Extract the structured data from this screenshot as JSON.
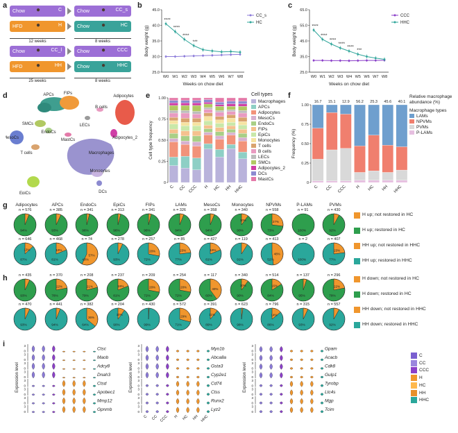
{
  "panel_labels": {
    "a": "a",
    "b": "b",
    "c": "c",
    "d": "d",
    "e": "e",
    "f": "f",
    "g": "g",
    "h": "h",
    "i": "i"
  },
  "panel_a": {
    "rows": [
      {
        "left": {
          "text": "Chow",
          "badge": "C",
          "color": "#9c6fd6"
        },
        "right": {
          "text": "Chow",
          "badge": "CC_s",
          "color": "#9c6fd6"
        }
      },
      {
        "left": {
          "text": "HFD",
          "badge": "H",
          "color": "#f0962d"
        },
        "right": {
          "text": "Chow",
          "badge": "HC",
          "color": "#3aa39a"
        }
      },
      {
        "left": {
          "text": "Chow",
          "badge": "CC_l",
          "color": "#9c6fd6"
        },
        "right": {
          "text": "Chow",
          "badge": "CCC",
          "color": "#9c6fd6"
        }
      },
      {
        "left": {
          "text": "HFD",
          "badge": "HH",
          "color": "#f0962d"
        },
        "right": {
          "text": "Chow",
          "badge": "HHC",
          "color": "#3aa39a"
        }
      }
    ],
    "dur_top_left": "12 weeks",
    "dur_top_right": "8 weeks",
    "dur_bot_left": "25 weeks",
    "dur_bot_right": "8 weeks"
  },
  "chart_data": [
    {
      "id": "b",
      "type": "line",
      "xlabel": "Weeks on chow diet",
      "ylabel": "Body weight (g)",
      "categories": [
        "W0",
        "W1",
        "W2",
        "W3",
        "W4",
        "W5",
        "W6",
        "W7",
        "W8"
      ],
      "yticks": [
        "25.0",
        "30.0",
        "35.0",
        "40.0",
        "45.0"
      ],
      "ylim": [
        25,
        45
      ],
      "series": [
        {
          "name": "CC_s",
          "color": "#8b7ad9",
          "values": [
            30.0,
            30.0,
            30.1,
            30.2,
            30.3,
            30.4,
            30.5,
            30.6,
            30.7
          ]
        },
        {
          "name": "HC",
          "color": "#2fa59a",
          "values": [
            40.5,
            38.0,
            35.5,
            33.5,
            32.2,
            31.8,
            31.5,
            31.6,
            31.4
          ]
        }
      ],
      "annotations": [
        "****",
        "****",
        "****",
        "***"
      ]
    },
    {
      "id": "c",
      "type": "line",
      "xlabel": "Weeks on chow diet",
      "ylabel": "Body weight (g)",
      "categories": [
        "W0",
        "W1",
        "W2",
        "W3",
        "W4",
        "W5",
        "W6",
        "W7",
        "W8"
      ],
      "yticks": [
        "25.0",
        "35.0",
        "45.0",
        "55.0",
        "65.0"
      ],
      "ylim": [
        25,
        65
      ],
      "series": [
        {
          "name": "CCC",
          "color": "#8b3fc9",
          "values": [
            32.5,
            32.5,
            32.4,
            32.4,
            32.3,
            32.4,
            32.5,
            32.5,
            32.6
          ]
        },
        {
          "name": "HHC",
          "color": "#2fa59a",
          "values": [
            52.0,
            46.0,
            43.0,
            40.5,
            38.5,
            36.5,
            35.0,
            34.0,
            33.2
          ]
        }
      ],
      "annotations": [
        "****",
        "****",
        "****",
        "****",
        "****",
        "***"
      ]
    },
    {
      "id": "e",
      "type": "bar",
      "ylabel": "Cell type frequency",
      "xlabel": "",
      "categories": [
        "C",
        "CC",
        "CCC",
        "H",
        "HC",
        "HH",
        "HHC"
      ],
      "yticks": [
        "0",
        "0.25",
        "0.50",
        "0.75",
        "1.00"
      ],
      "ylim": [
        0,
        1
      ],
      "legend_title": "Cell types",
      "series": [
        {
          "name": "Macrophages",
          "color": "#b9b3db",
          "values": [
            0.2,
            0.17,
            0.15,
            0.38,
            0.3,
            0.4,
            0.28
          ]
        },
        {
          "name": "APCs",
          "color": "#8ecfc5",
          "values": [
            0.1,
            0.14,
            0.14,
            0.06,
            0.09,
            0.05,
            0.08
          ]
        },
        {
          "name": "Adipocytes",
          "color": "#f2937a",
          "values": [
            0.18,
            0.14,
            0.14,
            0.1,
            0.12,
            0.11,
            0.13
          ]
        },
        {
          "name": "MesoCs",
          "color": "#d7b0d0",
          "values": [
            0.04,
            0.04,
            0.05,
            0.03,
            0.04,
            0.03,
            0.04
          ]
        },
        {
          "name": "EndoCs",
          "color": "#a9cf86",
          "values": [
            0.06,
            0.06,
            0.07,
            0.04,
            0.05,
            0.04,
            0.05
          ]
        },
        {
          "name": "FIPs",
          "color": "#f5c18e",
          "values": [
            0.05,
            0.06,
            0.06,
            0.04,
            0.05,
            0.04,
            0.05
          ]
        },
        {
          "name": "EpiCs",
          "color": "#c9e8a9",
          "values": [
            0.06,
            0.06,
            0.06,
            0.05,
            0.05,
            0.04,
            0.05
          ]
        },
        {
          "name": "Monocytes",
          "color": "#f6e3a1",
          "values": [
            0.04,
            0.04,
            0.04,
            0.05,
            0.04,
            0.05,
            0.04
          ]
        },
        {
          "name": "T cells",
          "color": "#d9a36e",
          "values": [
            0.04,
            0.05,
            0.05,
            0.04,
            0.04,
            0.04,
            0.05
          ]
        },
        {
          "name": "B cells",
          "color": "#e99bc1",
          "values": [
            0.05,
            0.06,
            0.05,
            0.04,
            0.05,
            0.04,
            0.05
          ]
        },
        {
          "name": "LECs",
          "color": "#bcbcbc",
          "values": [
            0.03,
            0.03,
            0.03,
            0.02,
            0.02,
            0.02,
            0.03
          ]
        },
        {
          "name": "SMCs",
          "color": "#b1c962",
          "values": [
            0.06,
            0.06,
            0.07,
            0.04,
            0.05,
            0.04,
            0.05
          ]
        },
        {
          "name": "Adipocytes_2",
          "color": "#cf3fa6",
          "values": [
            0.03,
            0.03,
            0.03,
            0.02,
            0.02,
            0.03,
            0.03
          ]
        },
        {
          "name": "DCs",
          "color": "#8c8ad0",
          "values": [
            0.03,
            0.03,
            0.03,
            0.03,
            0.03,
            0.03,
            0.03
          ]
        },
        {
          "name": "MastCs",
          "color": "#e47aa9",
          "values": [
            0.03,
            0.03,
            0.03,
            0.02,
            0.05,
            0.04,
            0.04
          ]
        }
      ]
    },
    {
      "id": "f",
      "type": "bar",
      "ylabel": "Frequency (%)",
      "xlabel": "",
      "categories": [
        "C",
        "CC",
        "CCC",
        "H",
        "HC",
        "HH",
        "HHC"
      ],
      "yticks": [
        "0",
        "0.25",
        "0.50",
        "0.75",
        "1.00"
      ],
      "ylim": [
        0,
        1
      ],
      "top_labels": [
        "16.7",
        "15.1",
        "12.9",
        "56.2",
        "25.3",
        "45.6",
        "40.1"
      ],
      "top_title": "Relative macrophage abundance (%)",
      "legend_title": "Macrophage types",
      "series": [
        {
          "name": "P-LAMs",
          "color": "#e6bfe0",
          "values": [
            0.02,
            0.02,
            0.02,
            0.03,
            0.03,
            0.03,
            0.03
          ]
        },
        {
          "name": "PVMs",
          "color": "#d9d9d9",
          "values": [
            0.28,
            0.4,
            0.42,
            0.1,
            0.12,
            0.1,
            0.13
          ]
        },
        {
          "name": "NPVMs",
          "color": "#f07f6e",
          "values": [
            0.4,
            0.48,
            0.44,
            0.34,
            0.46,
            0.35,
            0.3
          ]
        },
        {
          "name": "LAMs",
          "color": "#6f9fce",
          "values": [
            0.3,
            0.1,
            0.12,
            0.53,
            0.39,
            0.52,
            0.54
          ]
        }
      ]
    }
  ],
  "panel_d": {
    "labels": [
      "APCs",
      "FIPs",
      "Adipocytes",
      "B cells",
      "SMCs",
      "EndoCs",
      "LECs",
      "Adipocytes_2",
      "MesoCs",
      "T cells",
      "MastCs",
      "Macrophages",
      "EpiCs",
      "Monocytes",
      "DCs"
    ]
  },
  "cell_types": [
    "Adipocytes",
    "APCs",
    "EndoCs",
    "EpiCs",
    "FIPs",
    "LAMs",
    "MesoCs",
    "Monocytes",
    "NPVMs",
    "P-LAMs",
    "PVMs"
  ],
  "panel_g": {
    "rows": [
      {
        "n": [
          "n = 576",
          "n = 385",
          "n = 341",
          "n = 313",
          "n = 341",
          "n = 326",
          "n = 358",
          "n = 340",
          "n = 558",
          "n = 91",
          "n = 430"
        ],
        "orange": [
          0.06,
          0.07,
          0.04,
          0.04,
          0.04,
          0.06,
          0.06,
          0.1,
          0.27,
          0.0,
          0.08
        ],
        "pct": [
          "94%",
          "93%",
          "96%",
          "96%",
          "96%",
          "94%",
          "94%",
          "90%",
          "73%",
          "100%",
          "92%"
        ]
      },
      {
        "n": [
          "n = 646",
          "n = 468",
          "n = 74",
          "n = 278",
          "n = 257",
          "n = 85",
          "n = 427",
          "n = 119",
          "n = 413",
          "n = 2",
          "n = 407"
        ],
        "orange": [
          0.13,
          0.19,
          0.57,
          0.07,
          0.28,
          0.23,
          0.19,
          0.09,
          0.48,
          0.0,
          0.23
        ],
        "pct": [
          "87%",
          "81%",
          "43%",
          "93%",
          "72%",
          "77%",
          "81%",
          "91%",
          "52%",
          "100%",
          "77%"
        ]
      }
    ],
    "legend": [
      {
        "text": "H up; not restored in HC",
        "color": "#f0962d"
      },
      {
        "text": "H up; restored in HC",
        "color": "#2e9e4d"
      },
      {
        "text": "HH up; not restored in HHC",
        "color": "#f0962d"
      },
      {
        "text": "HH up; restored in HHC",
        "color": "#2aa79b"
      }
    ]
  },
  "panel_h": {
    "rows": [
      {
        "n": [
          "n = 435",
          "n = 370",
          "n = 208",
          "n = 237",
          "n = 209",
          "n = 254",
          "n = 117",
          "n = 340",
          "n = 514",
          "n = 137",
          "n = 296"
        ],
        "orange": [
          0.07,
          0.22,
          0.21,
          0.19,
          0.28,
          0.28,
          0.4,
          0.1,
          0.16,
          0.05,
          0.22
        ],
        "pct": [
          "93%",
          "78%",
          "79%",
          "81%",
          "72%",
          "72%",
          "60%",
          "90%",
          "84%",
          "95%",
          "78%"
        ]
      },
      {
        "n": [
          "n = 470",
          "n = 441",
          "n = 382",
          "n = 204",
          "n = 430",
          "n = 572",
          "n = 391",
          "n = 623",
          "n = 796",
          "n = 315",
          "n = 557"
        ],
        "orange": [
          0.07,
          0.06,
          0.36,
          0.1,
          0.01,
          0.29,
          0.11,
          0.02,
          0.14,
          0.07,
          0.08
        ],
        "pct": [
          "93%",
          "94%",
          "64%",
          "90%",
          "99%",
          "71%",
          "89%",
          "98%",
          "86%",
          "93%",
          "92%"
        ]
      }
    ],
    "legend": [
      {
        "text": "H down; not restored in HC",
        "color": "#f0962d"
      },
      {
        "text": "H down; restored in HC",
        "color": "#2e9e4d"
      },
      {
        "text": "HH down; not restored in HHC",
        "color": "#f0962d"
      },
      {
        "text": "HH down; restored in HHC",
        "color": "#2aa79b"
      }
    ]
  },
  "panel_i": {
    "ylabel": "Expression level",
    "groups": [
      "C",
      "CC",
      "CCC",
      "H",
      "HC",
      "HH",
      "HHC"
    ],
    "group_colors": [
      "#8b7ad9",
      "#8b7ad9",
      "#8b3fc9",
      "#f0962d",
      "#f0962d",
      "#f0962d",
      "#2aa79b"
    ],
    "legend_colors": [
      "#7a5fd0",
      "#9a86de",
      "#8b3fc9",
      "#f0962d",
      "#ffb84d",
      "#e8902a",
      "#2aa79b"
    ],
    "col1": [
      "Ctsc",
      "Maob",
      "Adcy8",
      "Dnah3",
      "Ctsd",
      "Apobec1",
      "Mmp12",
      "Gpnmb"
    ],
    "col2": [
      "Myo1b",
      "Abca8a",
      "Gsta3",
      "Cyp2e1",
      "Cd74",
      "Ctss",
      "Runx2",
      "Lyz2"
    ],
    "col3": [
      "Gpam",
      "Acacb",
      "Cdk8",
      "Gulp1",
      "Tyrobp",
      "Ltc4s",
      "Mgp",
      "Tcim"
    ],
    "ytick": [
      "3",
      "0"
    ]
  }
}
